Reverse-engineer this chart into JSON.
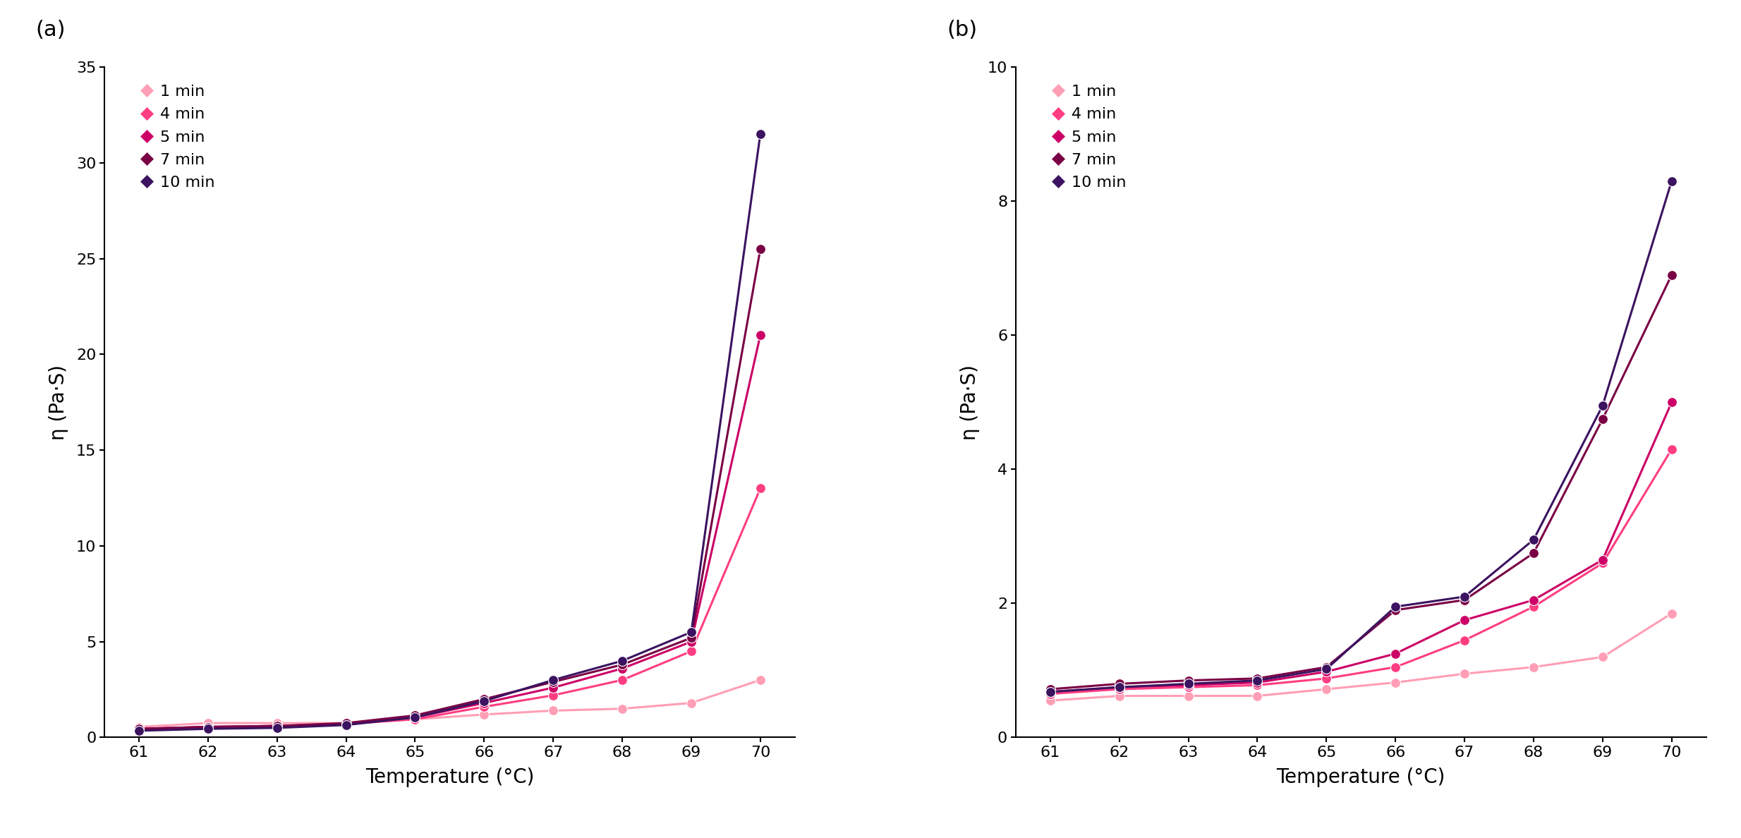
{
  "x": [
    61,
    62,
    63,
    64,
    65,
    66,
    67,
    68,
    69,
    70
  ],
  "panel_a": {
    "1min": [
      0.55,
      0.75,
      0.75,
      0.75,
      0.95,
      1.2,
      1.4,
      1.5,
      1.8,
      3.0
    ],
    "4min": [
      0.45,
      0.55,
      0.6,
      0.7,
      0.95,
      1.6,
      2.2,
      3.0,
      4.5,
      13.0
    ],
    "5min": [
      0.45,
      0.55,
      0.6,
      0.7,
      1.05,
      1.8,
      2.6,
      3.6,
      5.0,
      21.0
    ],
    "7min": [
      0.45,
      0.55,
      0.6,
      0.75,
      1.15,
      2.0,
      2.9,
      3.8,
      5.2,
      25.5
    ],
    "10min": [
      0.35,
      0.45,
      0.5,
      0.65,
      1.05,
      1.9,
      3.0,
      4.0,
      5.5,
      31.5
    ]
  },
  "panel_b": {
    "1min": [
      0.55,
      0.62,
      0.62,
      0.62,
      0.72,
      0.82,
      0.95,
      1.05,
      1.2,
      1.85
    ],
    "4min": [
      0.65,
      0.72,
      0.75,
      0.78,
      0.88,
      1.05,
      1.45,
      1.95,
      2.6,
      4.3
    ],
    "5min": [
      0.68,
      0.75,
      0.78,
      0.82,
      0.98,
      1.25,
      1.75,
      2.05,
      2.65,
      5.0
    ],
    "7min": [
      0.72,
      0.8,
      0.85,
      0.88,
      1.05,
      1.9,
      2.05,
      2.75,
      4.75,
      6.9
    ],
    "10min": [
      0.68,
      0.75,
      0.8,
      0.85,
      1.02,
      1.95,
      2.1,
      2.95,
      4.95,
      8.3
    ]
  },
  "colors": {
    "1min": "#FF9EB5",
    "4min": "#FF3D82",
    "5min": "#CC0066",
    "7min": "#7A0045",
    "10min": "#3B1360"
  },
  "labels": [
    "1 min",
    "4 min",
    "5 min",
    "7 min",
    "10 min"
  ],
  "keys": [
    "1min",
    "4min",
    "5min",
    "7min",
    "10min"
  ],
  "panel_a_ylim": [
    0,
    35
  ],
  "panel_b_ylim": [
    0,
    10
  ],
  "panel_a_yticks": [
    0,
    5,
    10,
    15,
    20,
    25,
    30,
    35
  ],
  "panel_b_yticks": [
    0,
    2,
    4,
    6,
    8,
    10
  ],
  "xlabel": "Temperature (°C)",
  "ylabel": "η (Pa·S)",
  "panel_a_label": "(a)",
  "panel_b_label": "(b)"
}
